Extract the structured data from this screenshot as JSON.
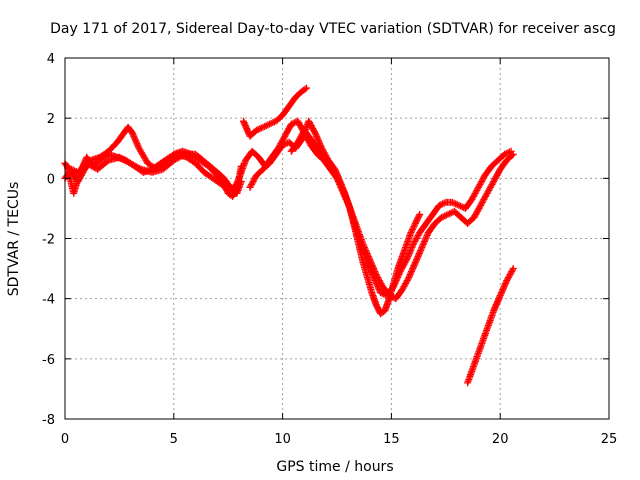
{
  "chart_data": {
    "type": "scatter",
    "title": "Day 171 of 2017, Sidereal Day-to-day VTEC variation (SDTVAR) for receiver ascg",
    "xlabel": "GPS time / hours",
    "ylabel": "SDTVAR / TECUs",
    "xlim": [
      0,
      25
    ],
    "ylim": [
      -8,
      4
    ],
    "xticks": [
      "0",
      "5",
      "10",
      "15",
      "20",
      "25"
    ],
    "yticks": [
      "-8",
      "-6",
      "-4",
      "-2",
      "0",
      "2",
      "4"
    ],
    "grid": true,
    "marker": "plus",
    "series_color": "#ff0000",
    "segments": [
      {
        "x": [
          0,
          0.3,
          0.6,
          0.9,
          1.2,
          1.6,
          2.0,
          2.4,
          2.7,
          2.9,
          3.1,
          3.4,
          3.8,
          4.2,
          4.6,
          5.0,
          5.4,
          5.8,
          6.2,
          6.6,
          7.0,
          7.3,
          7.5,
          7.7,
          7.9,
          8.1
        ],
        "y": [
          0.5,
          0.2,
          -0.1,
          0.3,
          0.6,
          0.7,
          0.9,
          1.2,
          1.5,
          1.7,
          1.5,
          1.0,
          0.5,
          0.3,
          0.5,
          0.8,
          0.9,
          0.8,
          0.6,
          0.4,
          0.1,
          -0.2,
          -0.5,
          -0.6,
          -0.4,
          0.4
        ]
      },
      {
        "x": [
          0,
          0.3,
          0.6,
          1.0,
          1.5,
          2.0,
          2.5,
          3.0,
          3.5,
          4.0,
          4.5,
          5.0,
          5.5,
          6.0,
          6.5,
          7.0,
          7.3,
          7.6,
          7.9,
          8.1
        ],
        "y": [
          0.0,
          0.3,
          0.2,
          0.5,
          0.3,
          0.6,
          0.7,
          0.5,
          0.3,
          0.2,
          0.3,
          0.6,
          0.8,
          0.8,
          0.5,
          0.2,
          0.0,
          -0.3,
          -0.5,
          -0.1
        ]
      },
      {
        "x": [
          0.1,
          0.4,
          0.7,
          1.0,
          1.3,
          1.6,
          2.0,
          2.4,
          2.8,
          3.2,
          3.6,
          4.0,
          4.4,
          4.8,
          5.2,
          5.6,
          6.0,
          6.4,
          6.8,
          7.2,
          7.5,
          7.8,
          8.0
        ],
        "y": [
          0.4,
          -0.5,
          0.2,
          0.7,
          0.4,
          0.6,
          0.8,
          0.7,
          0.6,
          0.4,
          0.2,
          0.3,
          0.5,
          0.7,
          0.8,
          0.7,
          0.5,
          0.2,
          0.0,
          -0.2,
          -0.4,
          -0.3,
          0.0
        ]
      },
      {
        "x": [
          8.2,
          8.5,
          8.8,
          9.1,
          9.4,
          9.7,
          10.0,
          10.3,
          10.6,
          10.9,
          11.1
        ],
        "y": [
          1.9,
          1.4,
          1.6,
          1.7,
          1.8,
          1.9,
          2.1,
          2.4,
          2.7,
          2.9,
          3.0
        ]
      },
      {
        "x": [
          8.0,
          8.3,
          8.6,
          8.9,
          9.2,
          9.5,
          9.8,
          10.1,
          10.4,
          10.7,
          11.0,
          11.3,
          11.6,
          11.9,
          12.2,
          12.5,
          12.8,
          13.1,
          13.3,
          13.5,
          13.7,
          13.9,
          14.1,
          14.3,
          14.5,
          14.7,
          14.9,
          15.1,
          15.3,
          15.5,
          15.7,
          15.9,
          16.1,
          16.3
        ],
        "y": [
          0.0,
          0.6,
          0.9,
          0.7,
          0.4,
          0.7,
          1.0,
          1.4,
          1.8,
          1.9,
          1.5,
          1.1,
          0.8,
          0.6,
          0.3,
          0.0,
          -0.4,
          -1.0,
          -1.6,
          -2.2,
          -2.8,
          -3.3,
          -3.8,
          -4.2,
          -4.5,
          -4.4,
          -4.0,
          -3.5,
          -3.0,
          -2.6,
          -2.2,
          -1.8,
          -1.5,
          -1.2
        ]
      },
      {
        "x": [
          8.5,
          8.8,
          9.1,
          9.4,
          9.7,
          10.0,
          10.3,
          10.6,
          10.9,
          11.2,
          11.5,
          11.8,
          12.1,
          12.4,
          12.7,
          13.0,
          13.3,
          13.6,
          13.9,
          14.2,
          14.5,
          14.8,
          15.1,
          15.4,
          15.7,
          16.0,
          16.3,
          16.6,
          16.9,
          17.2,
          17.5,
          17.8,
          18.1,
          18.4,
          18.7,
          19.0,
          19.3,
          19.6,
          19.9,
          20.2,
          20.5
        ],
        "y": [
          -0.3,
          0.1,
          0.3,
          0.5,
          0.8,
          1.1,
          1.2,
          1.0,
          1.3,
          1.9,
          1.5,
          1.0,
          0.6,
          0.3,
          -0.2,
          -0.8,
          -1.5,
          -2.2,
          -2.8,
          -3.3,
          -3.8,
          -3.9,
          -3.6,
          -3.1,
          -2.7,
          -2.2,
          -1.8,
          -1.5,
          -1.2,
          -0.9,
          -0.8,
          -0.8,
          -0.9,
          -1.0,
          -0.7,
          -0.3,
          0.1,
          0.4,
          0.6,
          0.8,
          0.9
        ]
      },
      {
        "x": [
          10.4,
          10.7,
          11.0,
          11.3,
          11.6,
          11.9,
          12.2,
          12.5,
          12.8,
          13.1,
          13.4,
          13.7,
          14.0,
          14.3,
          14.6,
          14.9,
          15.2,
          15.5,
          15.8,
          16.1,
          16.4,
          16.7,
          17.0,
          17.3,
          17.6,
          17.9,
          18.2,
          18.5,
          18.8,
          19.1,
          19.4,
          19.7,
          20.0,
          20.3,
          20.6
        ],
        "y": [
          0.9,
          1.2,
          1.6,
          1.3,
          1.0,
          0.7,
          0.4,
          0.0,
          -0.5,
          -1.0,
          -1.6,
          -2.2,
          -2.7,
          -3.2,
          -3.6,
          -3.9,
          -4.0,
          -3.7,
          -3.3,
          -2.8,
          -2.3,
          -1.8,
          -1.5,
          -1.3,
          -1.2,
          -1.1,
          -1.3,
          -1.5,
          -1.3,
          -0.9,
          -0.5,
          -0.1,
          0.3,
          0.6,
          0.8
        ]
      },
      {
        "x": [
          18.5,
          18.8,
          19.1,
          19.4,
          19.7,
          20.0,
          20.3,
          20.6
        ],
        "y": [
          -6.8,
          -6.2,
          -5.6,
          -5.0,
          -4.4,
          -3.9,
          -3.4,
          -3.0
        ]
      }
    ]
  }
}
